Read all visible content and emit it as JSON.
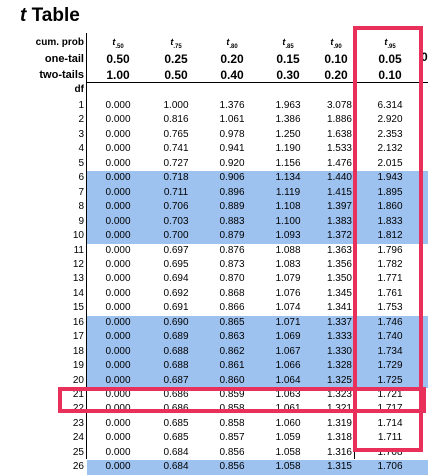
{
  "title": {
    "t": "t",
    "rest": " Table"
  },
  "header_labels": {
    "cum_prob": "cum. prob",
    "one_tail": "one-tail",
    "two_tails": "two-tails",
    "df": "df"
  },
  "columns": [
    {
      "t_sub": ".50",
      "one": "0.50",
      "two": "1.00"
    },
    {
      "t_sub": ".75",
      "one": "0.25",
      "two": "0.50"
    },
    {
      "t_sub": ".80",
      "one": "0.20",
      "two": "0.40"
    },
    {
      "t_sub": ".85",
      "one": "0.15",
      "two": "0.30"
    },
    {
      "t_sub": ".90",
      "one": "0.10",
      "two": "0.20"
    },
    {
      "t_sub": ".95",
      "one": "0.05",
      "two": "0.10"
    }
  ],
  "edge_glyph": "0",
  "rows": [
    {
      "df": "1",
      "v": [
        "0.000",
        "1.000",
        "1.376",
        "1.963",
        "3.078",
        "6.314"
      ]
    },
    {
      "df": "2",
      "v": [
        "0.000",
        "0.816",
        "1.061",
        "1.386",
        "1.886",
        "2.920"
      ]
    },
    {
      "df": "3",
      "v": [
        "0.000",
        "0.765",
        "0.978",
        "1.250",
        "1.638",
        "2.353"
      ]
    },
    {
      "df": "4",
      "v": [
        "0.000",
        "0.741",
        "0.941",
        "1.190",
        "1.533",
        "2.132"
      ]
    },
    {
      "df": "5",
      "v": [
        "0.000",
        "0.727",
        "0.920",
        "1.156",
        "1.476",
        "2.015"
      ]
    },
    {
      "df": "6",
      "v": [
        "0.000",
        "0.718",
        "0.906",
        "1.134",
        "1.440",
        "1.943"
      ]
    },
    {
      "df": "7",
      "v": [
        "0.000",
        "0.711",
        "0.896",
        "1.119",
        "1.415",
        "1.895"
      ]
    },
    {
      "df": "8",
      "v": [
        "0.000",
        "0.706",
        "0.889",
        "1.108",
        "1.397",
        "1.860"
      ]
    },
    {
      "df": "9",
      "v": [
        "0.000",
        "0.703",
        "0.883",
        "1.100",
        "1.383",
        "1.833"
      ]
    },
    {
      "df": "10",
      "v": [
        "0.000",
        "0.700",
        "0.879",
        "1.093",
        "1.372",
        "1.812"
      ]
    },
    {
      "df": "11",
      "v": [
        "0.000",
        "0.697",
        "0.876",
        "1.088",
        "1.363",
        "1.796"
      ]
    },
    {
      "df": "12",
      "v": [
        "0.000",
        "0.695",
        "0.873",
        "1.083",
        "1.356",
        "1.782"
      ]
    },
    {
      "df": "13",
      "v": [
        "0.000",
        "0.694",
        "0.870",
        "1.079",
        "1.350",
        "1.771"
      ]
    },
    {
      "df": "14",
      "v": [
        "0.000",
        "0.692",
        "0.868",
        "1.076",
        "1.345",
        "1.761"
      ]
    },
    {
      "df": "15",
      "v": [
        "0.000",
        "0.691",
        "0.866",
        "1.074",
        "1.341",
        "1.753"
      ]
    },
    {
      "df": "16",
      "v": [
        "0.000",
        "0.690",
        "0.865",
        "1.071",
        "1.337",
        "1.746"
      ]
    },
    {
      "df": "17",
      "v": [
        "0.000",
        "0.689",
        "0.863",
        "1.069",
        "1.333",
        "1.740"
      ]
    },
    {
      "df": "18",
      "v": [
        "0.000",
        "0.688",
        "0.862",
        "1.067",
        "1.330",
        "1.734"
      ]
    },
    {
      "df": "19",
      "v": [
        "0.000",
        "0.688",
        "0.861",
        "1.066",
        "1.328",
        "1.729"
      ]
    },
    {
      "df": "20",
      "v": [
        "0.000",
        "0.687",
        "0.860",
        "1.064",
        "1.325",
        "1.725"
      ]
    },
    {
      "df": "21",
      "v": [
        "0.000",
        "0.686",
        "0.859",
        "1.063",
        "1.323",
        "1.721"
      ]
    },
    {
      "df": "22",
      "v": [
        "0.000",
        "0.686",
        "0.858",
        "1.061",
        "1.321",
        "1.717"
      ]
    },
    {
      "df": "23",
      "v": [
        "0.000",
        "0.685",
        "0.858",
        "1.060",
        "1.319",
        "1.714"
      ]
    },
    {
      "df": "24",
      "v": [
        "0.000",
        "0.685",
        "0.857",
        "1.059",
        "1.318",
        "1.711"
      ]
    },
    {
      "df": "25",
      "v": [
        "0.000",
        "0.684",
        "0.856",
        "1.058",
        "1.316",
        "1.708"
      ]
    },
    {
      "df": "26",
      "v": [
        "0.000",
        "0.684",
        "0.856",
        "1.058",
        "1.315",
        "1.706"
      ]
    }
  ],
  "shaded_row_groups": [
    [
      6,
      10
    ],
    [
      16,
      20
    ],
    [
      26,
      26
    ]
  ],
  "highlighted_column": ".95",
  "highlighted_row": "22",
  "highlight_color": "#e8305a",
  "band_color": "#9ec2f0"
}
